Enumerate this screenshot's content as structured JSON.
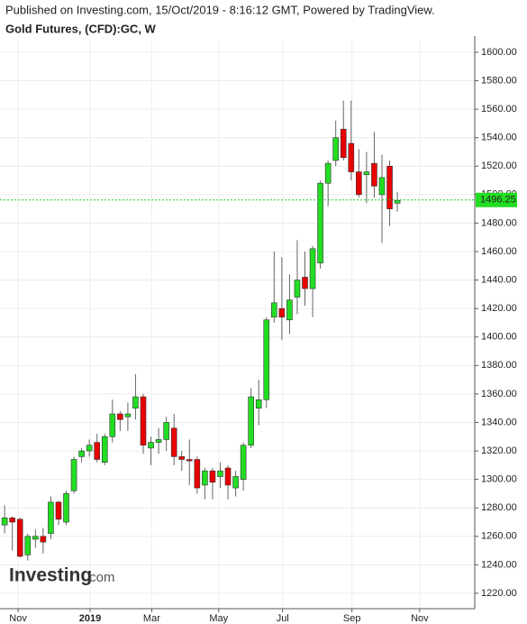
{
  "header": {
    "published": "Published on Investing.com, 15/Oct/2019 - 8:16:12 GMT, Powered by TradingView.",
    "instrument": "Gold Futures, (CFD):GC, W"
  },
  "logo": {
    "brand": "Investing",
    "suffix": ".com"
  },
  "chart_data": {
    "type": "candlestick",
    "categories": [
      null,
      null,
      null,
      null,
      null,
      null,
      null,
      null,
      null,
      null,
      null,
      null,
      null,
      null,
      null,
      null,
      null,
      null,
      null,
      null,
      null,
      null,
      null,
      null,
      null,
      null,
      null,
      null,
      null,
      null,
      null,
      null,
      null,
      null,
      null,
      null,
      null,
      null,
      null,
      null,
      null,
      null,
      null,
      null,
      null,
      null,
      null,
      null,
      null,
      null,
      null,
      null
    ],
    "open": [
      1268,
      1273,
      1272,
      1247,
      1258,
      1260,
      1262,
      1284,
      1270,
      1292,
      1316,
      1320,
      1326,
      1312,
      1330,
      1346,
      1344,
      1350,
      1358,
      1322,
      1326,
      1328,
      1336,
      1316,
      1314,
      1314,
      1296,
      1306,
      1302,
      1308,
      1294,
      1300,
      1324,
      1350,
      1356,
      1414,
      1420,
      1412,
      1428,
      1442,
      1434,
      1452,
      1508,
      1524,
      1546,
      1536,
      1516,
      1514,
      1522,
      1500,
      1520,
      1494
    ],
    "high": [
      1282,
      1274,
      1273,
      1262,
      1265,
      1266,
      1288,
      1285,
      1292,
      1316,
      1322,
      1328,
      1332,
      1332,
      1356,
      1348,
      1354,
      1374,
      1360,
      1330,
      1336,
      1344,
      1346,
      1320,
      1328,
      1316,
      1308,
      1308,
      1312,
      1310,
      1306,
      1326,
      1364,
      1370,
      1414,
      1460,
      1456,
      1444,
      1468,
      1460,
      1464,
      1510,
      1524,
      1552,
      1566,
      1566,
      1532,
      1530,
      1544,
      1528,
      1524,
      1502
    ],
    "low": [
      1262,
      1250,
      1245,
      1243,
      1252,
      1248,
      1258,
      1268,
      1268,
      1290,
      1312,
      1316,
      1312,
      1310,
      1326,
      1334,
      1334,
      1342,
      1318,
      1310,
      1318,
      1320,
      1310,
      1306,
      1296,
      1290,
      1286,
      1286,
      1294,
      1286,
      1288,
      1292,
      1322,
      1338,
      1350,
      1410,
      1398,
      1402,
      1416,
      1422,
      1414,
      1448,
      1492,
      1520,
      1524,
      1510,
      1498,
      1494,
      1498,
      1466,
      1478,
      1488
    ],
    "close": [
      1273,
      1270,
      1246,
      1260,
      1260,
      1256,
      1284,
      1272,
      1290,
      1314,
      1320,
      1324,
      1314,
      1330,
      1346,
      1342,
      1346,
      1358,
      1324,
      1326,
      1328,
      1340,
      1316,
      1314,
      1313,
      1294,
      1306,
      1298,
      1306,
      1296,
      1302,
      1324,
      1358,
      1356,
      1412,
      1424,
      1414,
      1426,
      1440,
      1434,
      1462,
      1508,
      1522,
      1540,
      1526,
      1516,
      1500,
      1516,
      1506,
      1512,
      1490,
      1496
    ],
    "up_color": "#22dd22",
    "down_color": "#e80000",
    "last_price": 1496.25,
    "xlim": [
      -0.6,
      61.05
    ],
    "xticks": [
      {
        "value": 1.75,
        "label": "Nov"
      },
      {
        "value": 11.1,
        "label": "2019"
      },
      {
        "value": 19.1,
        "label": "Mar"
      },
      {
        "value": 27.8,
        "label": "May"
      },
      {
        "value": 36.1,
        "label": "Jul"
      },
      {
        "value": 45.1,
        "label": "Sep"
      },
      {
        "value": 53.9,
        "label": "Nov"
      }
    ],
    "ylim": [
      1209.2,
      1608.2
    ],
    "yticks": [
      {
        "value": 1220,
        "label": "1220.00"
      },
      {
        "value": 1240,
        "label": "1240.00"
      },
      {
        "value": 1260,
        "label": "1260.00"
      },
      {
        "value": 1280,
        "label": "1280.00"
      },
      {
        "value": 1300,
        "label": "1300.00"
      },
      {
        "value": 1320,
        "label": "1320.00"
      },
      {
        "value": 1340,
        "label": "1340.00"
      },
      {
        "value": 1360,
        "label": "1360.00"
      },
      {
        "value": 1380,
        "label": "1380.00"
      },
      {
        "value": 1400,
        "label": "1400.00"
      },
      {
        "value": 1420,
        "label": "1420.00"
      },
      {
        "value": 1440,
        "label": "1440.00"
      },
      {
        "value": 1460,
        "label": "1460.00"
      },
      {
        "value": 1480,
        "label": "1480.00"
      },
      {
        "value": 1500,
        "label": "1500.00"
      },
      {
        "value": 1520,
        "label": "1520.00"
      },
      {
        "value": 1540,
        "label": "1540.00"
      },
      {
        "value": 1560,
        "label": "1560.00"
      },
      {
        "value": 1580,
        "label": "1580.00"
      },
      {
        "value": 1600,
        "label": "1600.00"
      }
    ],
    "grid": true
  }
}
